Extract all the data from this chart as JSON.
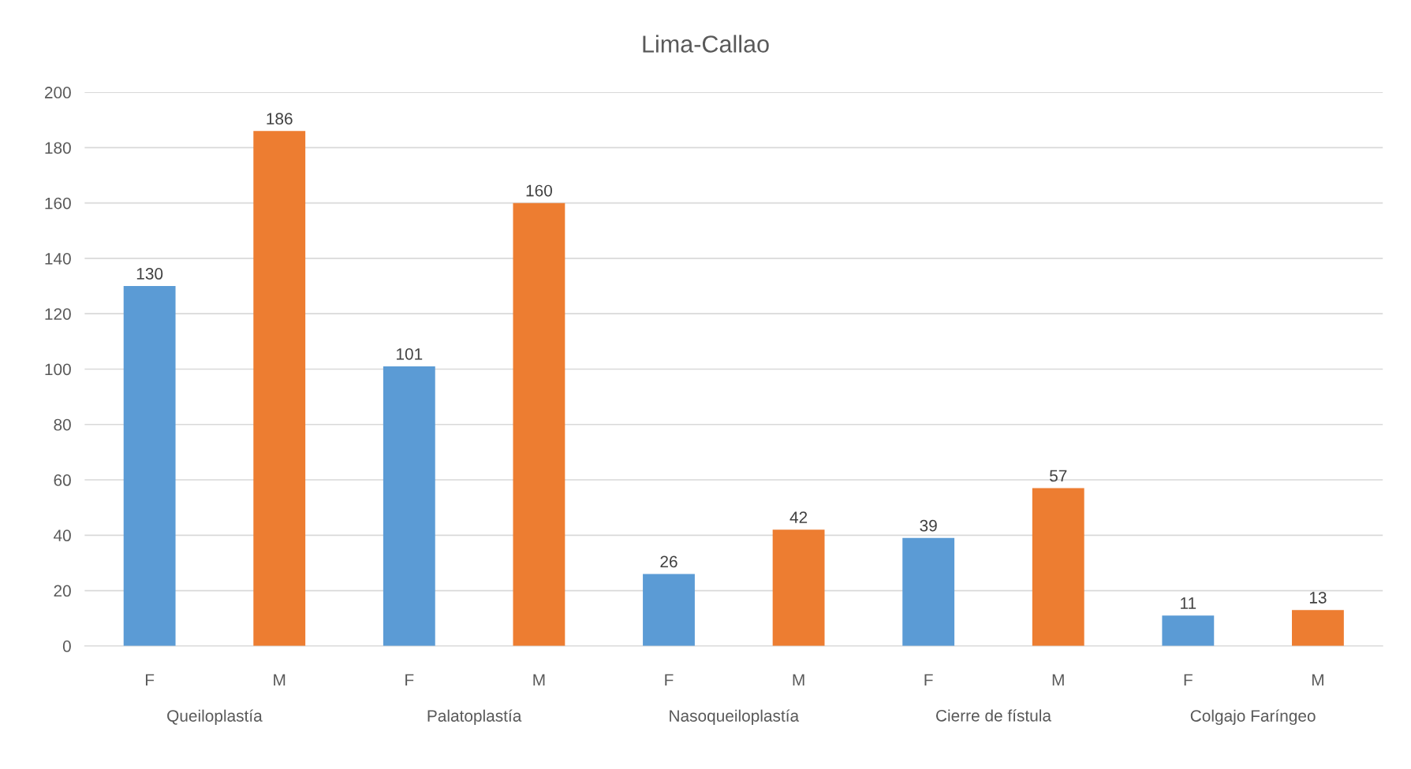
{
  "chart_data": {
    "type": "bar",
    "title": "Lima-Callao",
    "categories": [
      "Queiloplastía",
      "Palatoplastía",
      "Nasoqueiloplastía",
      "Cierre de fístula",
      "Colgajo Faríngeo"
    ],
    "series": [
      {
        "name": "F",
        "color": "#5b9bd5",
        "values": [
          130,
          101,
          26,
          39,
          11
        ]
      },
      {
        "name": "M",
        "color": "#ed7d31",
        "values": [
          186,
          160,
          42,
          57,
          13
        ]
      }
    ],
    "ylim": [
      0,
      200
    ],
    "yticks": [
      0,
      20,
      40,
      60,
      80,
      100,
      120,
      140,
      160,
      180,
      200
    ],
    "grid": "y",
    "data_labels": true,
    "legend": false
  }
}
